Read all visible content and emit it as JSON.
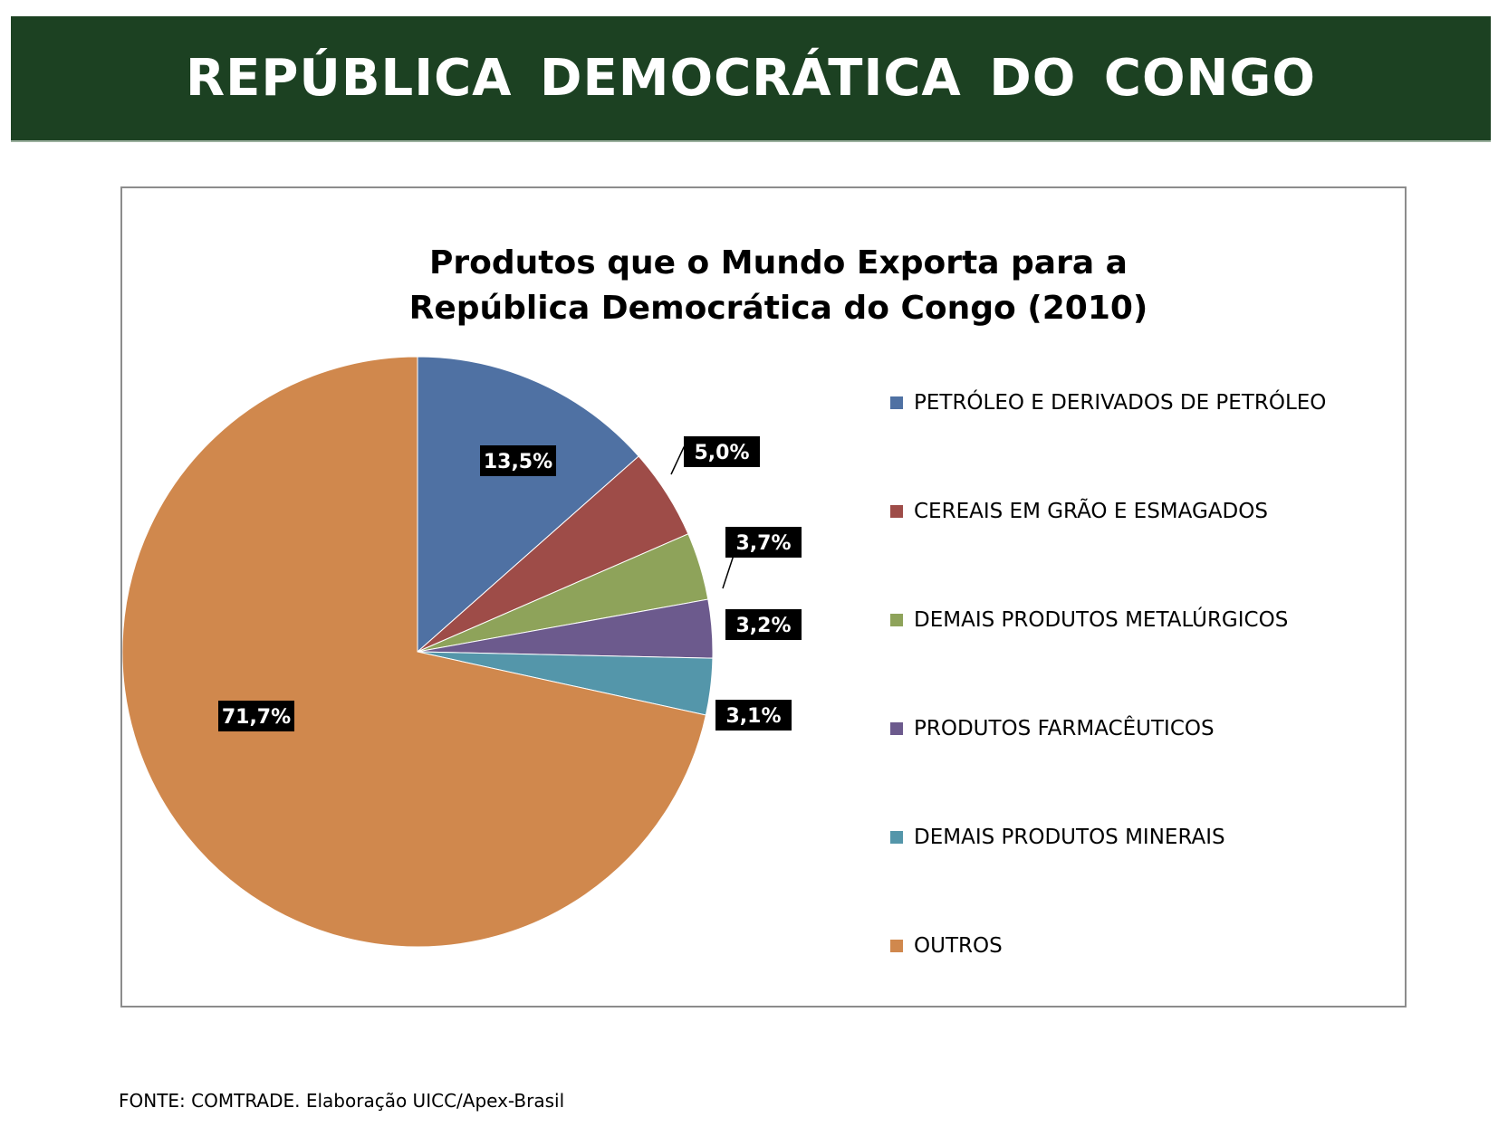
{
  "header": {
    "title": "REPÚBLICA DEMOCRÁTICA DO CONGO"
  },
  "chart_data": {
    "type": "pie",
    "title_lines": [
      "Produtos que o Mundo Exporta para a",
      "República  Democrática do Congo (2010)"
    ],
    "categories": [
      "PETRÓLEO E DERIVADOS DE PETRÓLEO",
      "CEREAIS EM GRÃO E ESMAGADOS",
      "DEMAIS PRODUTOS METALÚRGICOS",
      "PRODUTOS FARMACÊUTICOS",
      "DEMAIS PRODUTOS MINERAIS",
      "OUTROS"
    ],
    "values": [
      13.5,
      5.0,
      3.7,
      3.2,
      3.1,
      71.7
    ],
    "data_labels": [
      "13,5%",
      "5,0%",
      "3,7%",
      "3,2%",
      "3,1%",
      "71,7%"
    ],
    "colors": [
      "#4f71a3",
      "#9e4c48",
      "#8ea35a",
      "#6c5a8d",
      "#5496aa",
      "#d0884d"
    ],
    "unit": "%",
    "legend_position": "right",
    "start_angle": "12 o'clock",
    "direction": "clockwise"
  },
  "footer": {
    "source": "FONTE: COMTRADE. Elaboração UICC/Apex-Brasil"
  }
}
